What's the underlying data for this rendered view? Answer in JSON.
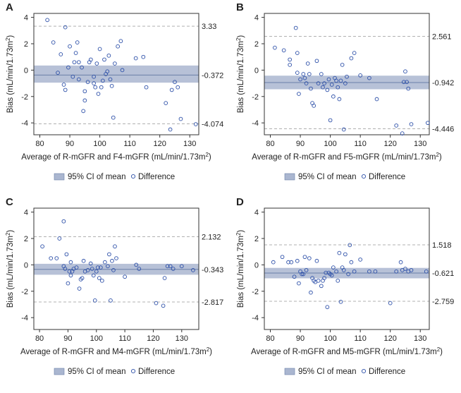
{
  "colors": {
    "ci_band": "#aab6d0",
    "mean_line": "#6a7fa8",
    "loa_line": "#b0b0b0",
    "point": "#2c4fa8",
    "axis": "#333333"
  },
  "chart_data": [
    {
      "type": "scatter",
      "panel": "A",
      "xlabel": "Average of R-mGFR and F4-mGFR (mL/min/1.73m",
      "xlabel_sup": "2",
      "xlabel_end": ")",
      "ylabel": "Bias (mL/min/1.73m",
      "ylabel_sup": "2",
      "ylabel_end": ")",
      "xlim": [
        78,
        133
      ],
      "ylim": [
        -4.9,
        4.3
      ],
      "xticks": [
        80,
        90,
        100,
        110,
        120,
        130
      ],
      "yticks": [
        4,
        2,
        0,
        -2,
        -4
      ],
      "mean": -0.372,
      "ci": [
        -0.95,
        0.35
      ],
      "upper": 3.33,
      "lower": -4.074,
      "upper_label": "3.33",
      "mean_label": "-0.372",
      "lower_label": "-4.074",
      "legend": [
        "95% CI of mean",
        "Difference"
      ],
      "points": [
        [
          82.5,
          3.8
        ],
        [
          84.5,
          2.1
        ],
        [
          86,
          -0.2
        ],
        [
          87,
          1.2
        ],
        [
          88.5,
          3.25
        ],
        [
          88,
          -1.1
        ],
        [
          88.5,
          -1.5
        ],
        [
          89.5,
          0.2
        ],
        [
          90,
          1.8
        ],
        [
          91,
          -0.5
        ],
        [
          91.5,
          0.6
        ],
        [
          92,
          1.3
        ],
        [
          92.5,
          2.1
        ],
        [
          93,
          0.6
        ],
        [
          93,
          -0.7
        ],
        [
          94,
          0.2
        ],
        [
          94.5,
          -3.1
        ],
        [
          95,
          -1.6
        ],
        [
          95,
          -2.3
        ],
        [
          96,
          -0.9
        ],
        [
          96.5,
          0.6
        ],
        [
          97,
          0.8
        ],
        [
          98,
          -0.5
        ],
        [
          98,
          -1.0
        ],
        [
          98.5,
          -1.3
        ],
        [
          99,
          0.5
        ],
        [
          99.5,
          -1.8
        ],
        [
          100,
          1.6
        ],
        [
          100.5,
          -1.3
        ],
        [
          101,
          -0.8
        ],
        [
          101.5,
          0.8
        ],
        [
          102,
          -0.3
        ],
        [
          102.5,
          -0.1
        ],
        [
          103,
          1.1
        ],
        [
          103.5,
          -0.7
        ],
        [
          104,
          -1.2
        ],
        [
          104.5,
          -3.6
        ],
        [
          105,
          0.5
        ],
        [
          106,
          1.8
        ],
        [
          107,
          2.2
        ],
        [
          107.5,
          0.0
        ],
        [
          112,
          0.9
        ],
        [
          114.5,
          1.0
        ],
        [
          115.5,
          -1.3
        ],
        [
          122,
          -2.5
        ],
        [
          123.5,
          -4.5
        ],
        [
          124,
          -1.5
        ],
        [
          125,
          -0.9
        ],
        [
          126,
          -1.3
        ],
        [
          127,
          -3.7
        ],
        [
          132,
          -4.1
        ]
      ]
    },
    {
      "type": "scatter",
      "panel": "B",
      "xlabel": "Average of R-mGFR and F5-mGFR (mL/min/1.73m",
      "xlabel_sup": "2",
      "xlabel_end": ")",
      "ylabel": "Bias (mL/min/1.73m",
      "ylabel_sup": "2",
      "ylabel_end": ")",
      "xlim": [
        78,
        133
      ],
      "ylim": [
        -4.9,
        4.3
      ],
      "xticks": [
        80,
        90,
        100,
        110,
        120,
        130
      ],
      "yticks": [
        4,
        2,
        0,
        -2,
        -4
      ],
      "mean": -0.942,
      "ci": [
        -1.45,
        -0.42
      ],
      "upper": 2.561,
      "lower": -4.446,
      "upper_label": "2.561",
      "mean_label": "-0.942",
      "lower_label": "-4.446",
      "legend": [
        "95% CI of mean",
        "Difference"
      ],
      "points": [
        [
          81.5,
          1.7
        ],
        [
          84.5,
          1.5
        ],
        [
          86.5,
          0.8
        ],
        [
          86.5,
          0.4
        ],
        [
          88.5,
          3.2
        ],
        [
          89,
          1.3
        ],
        [
          89,
          -0.2
        ],
        [
          89.5,
          -1.8
        ],
        [
          90,
          -0.7
        ],
        [
          91,
          -0.3
        ],
        [
          91.5,
          -0.6
        ],
        [
          92,
          -1.0
        ],
        [
          92.5,
          0.5
        ],
        [
          93,
          -0.3
        ],
        [
          93.5,
          -1.4
        ],
        [
          94,
          -2.5
        ],
        [
          94.5,
          -2.7
        ],
        [
          95.5,
          0.7
        ],
        [
          96,
          -1.0
        ],
        [
          97,
          -0.3
        ],
        [
          97.5,
          -1.3
        ],
        [
          98,
          -1.0
        ],
        [
          99,
          -1.5
        ],
        [
          99.5,
          -0.7
        ],
        [
          100,
          -3.8
        ],
        [
          100.5,
          -1.1
        ],
        [
          101,
          -2.0
        ],
        [
          101.5,
          -0.6
        ],
        [
          102,
          -0.8
        ],
        [
          102.5,
          -1.3
        ],
        [
          103,
          -2.2
        ],
        [
          103.5,
          -0.8
        ],
        [
          104,
          0.4
        ],
        [
          104.5,
          -4.5
        ],
        [
          105,
          -1.0
        ],
        [
          105.5,
          -0.5
        ],
        [
          107,
          0.9
        ],
        [
          108,
          1.3
        ],
        [
          110,
          -0.4
        ],
        [
          113,
          -0.6
        ],
        [
          115.5,
          -2.2
        ],
        [
          122,
          -4.2
        ],
        [
          124,
          -4.8
        ],
        [
          124.5,
          -0.9
        ],
        [
          125,
          -0.1
        ],
        [
          125.5,
          -0.9
        ],
        [
          126,
          -1.4
        ],
        [
          127,
          -4.1
        ],
        [
          132.5,
          -4.0
        ]
      ]
    },
    {
      "type": "scatter",
      "panel": "C",
      "xlabel": "Average of R-mGFR and M4-mGFR (mL/min/1.73m",
      "xlabel_sup": "2",
      "xlabel_end": ")",
      "ylabel": "Bias (mL/min/1.73m",
      "ylabel_sup": "2",
      "ylabel_end": ")",
      "xlim": [
        78,
        136
      ],
      "ylim": [
        -4.9,
        4.3
      ],
      "xticks": [
        80,
        90,
        100,
        110,
        120,
        130
      ],
      "yticks": [
        4,
        2,
        0,
        -2,
        -4
      ],
      "mean": -0.343,
      "ci": [
        -0.75,
        0.08
      ],
      "upper": 2.132,
      "lower": -2.817,
      "upper_label": "2.132",
      "mean_label": "-0.343",
      "lower_label": "-2.817",
      "legend": [
        "95% CI of mean",
        "Difference"
      ],
      "points": [
        [
          81,
          1.4
        ],
        [
          84,
          0.5
        ],
        [
          86,
          0.5
        ],
        [
          87,
          2.0
        ],
        [
          88.5,
          3.3
        ],
        [
          88.5,
          -0.1
        ],
        [
          89,
          -0.3
        ],
        [
          89.5,
          0.8
        ],
        [
          90,
          -1.4
        ],
        [
          90.5,
          -0.5
        ],
        [
          91,
          0.2
        ],
        [
          91,
          -0.8
        ],
        [
          91.5,
          -0.5
        ],
        [
          92,
          -0.3
        ],
        [
          93,
          -0.2
        ],
        [
          94,
          -1.8
        ],
        [
          94.5,
          -1.1
        ],
        [
          95,
          -1.0
        ],
        [
          95.5,
          0.3
        ],
        [
          96,
          -0.5
        ],
        [
          97,
          -0.4
        ],
        [
          98,
          0.1
        ],
        [
          98.5,
          -0.3
        ],
        [
          99,
          -0.8
        ],
        [
          99.5,
          -2.7
        ],
        [
          100,
          -0.5
        ],
        [
          100.5,
          -0.2
        ],
        [
          101,
          -1.0
        ],
        [
          101.5,
          -0.2
        ],
        [
          102,
          -1.2
        ],
        [
          103,
          0.2
        ],
        [
          104,
          -0.1
        ],
        [
          104.5,
          0.8
        ],
        [
          105,
          -2.7
        ],
        [
          105.5,
          0.3
        ],
        [
          106,
          -0.4
        ],
        [
          106.5,
          1.4
        ],
        [
          107,
          0.5
        ],
        [
          110,
          -0.9
        ],
        [
          114,
          0.0
        ],
        [
          115,
          -0.3
        ],
        [
          121,
          -2.9
        ],
        [
          123.5,
          -3.1
        ],
        [
          124,
          -1.0
        ],
        [
          125,
          -0.1
        ],
        [
          126,
          -0.1
        ],
        [
          127,
          -0.3
        ],
        [
          130,
          -0.1
        ],
        [
          134,
          -0.4
        ]
      ]
    },
    {
      "type": "scatter",
      "panel": "D",
      "xlabel": "Average of R-mGFR and M5-mGFR (mL/min/1.73m",
      "xlabel_sup": "2",
      "xlabel_end": ")",
      "ylabel": "Bias (mL/min/1.73m",
      "ylabel_sup": "2",
      "ylabel_end": ")",
      "xlim": [
        78,
        133
      ],
      "ylim": [
        -4.9,
        4.3
      ],
      "xticks": [
        80,
        90,
        100,
        110,
        120,
        130
      ],
      "yticks": [
        4,
        2,
        0,
        -2,
        -4
      ],
      "mean": -0.621,
      "ci": [
        -1.02,
        -0.23
      ],
      "upper": 1.518,
      "lower": -2.759,
      "upper_label": "1.518",
      "mean_label": "-0.621",
      "lower_label": "-2.759",
      "legend": [
        "95% CI of mean",
        "Difference"
      ],
      "points": [
        [
          81,
          0.2
        ],
        [
          84,
          0.6
        ],
        [
          86,
          0.2
        ],
        [
          87,
          0.2
        ],
        [
          88,
          -0.9
        ],
        [
          89,
          0.3
        ],
        [
          89.5,
          -1.4
        ],
        [
          90,
          -0.5
        ],
        [
          90.5,
          -0.7
        ],
        [
          91,
          -0.7
        ],
        [
          91.5,
          0.6
        ],
        [
          92,
          -0.4
        ],
        [
          93,
          0.5
        ],
        [
          93.5,
          -2.1
        ],
        [
          94,
          -1.0
        ],
        [
          94.5,
          -1.2
        ],
        [
          95,
          -1.3
        ],
        [
          95.5,
          0.3
        ],
        [
          96,
          -1.2
        ],
        [
          97,
          -1.6
        ],
        [
          97.5,
          -1.2
        ],
        [
          98,
          -1.0
        ],
        [
          98.5,
          -0.6
        ],
        [
          99,
          -3.2
        ],
        [
          99.5,
          -0.6
        ],
        [
          100,
          -0.7
        ],
        [
          100.5,
          -0.8
        ],
        [
          101,
          -0.2
        ],
        [
          102,
          -0.5
        ],
        [
          102.5,
          -1.2
        ],
        [
          103,
          0.9
        ],
        [
          103.5,
          -2.8
        ],
        [
          104,
          -0.2
        ],
        [
          104.5,
          -0.4
        ],
        [
          105,
          0.8
        ],
        [
          106,
          -0.7
        ],
        [
          106.5,
          1.5
        ],
        [
          107,
          0.2
        ],
        [
          108,
          -0.5
        ],
        [
          110,
          0.4
        ],
        [
          113,
          -0.5
        ],
        [
          115,
          -0.5
        ],
        [
          120,
          -2.9
        ],
        [
          122,
          -0.5
        ],
        [
          123.5,
          0.2
        ],
        [
          124,
          -0.4
        ],
        [
          125,
          -0.3
        ],
        [
          126,
          -0.5
        ],
        [
          127,
          -0.4
        ],
        [
          132,
          -0.5
        ]
      ]
    }
  ]
}
